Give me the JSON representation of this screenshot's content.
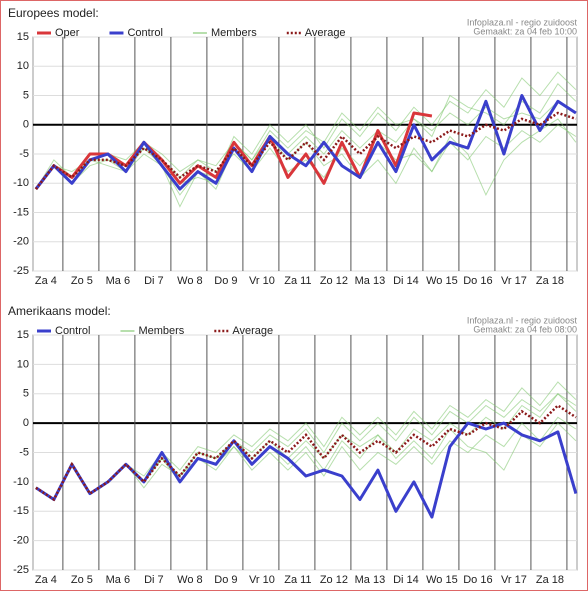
{
  "chart_data": [
    {
      "type": "line",
      "title": "Europees model:",
      "source": "Infoplaza.nl - regio zuidoost",
      "made": "Gemaakt: za 04 feb 10:00",
      "x": [
        -0.75,
        -0.25,
        0.25,
        0.75,
        1.25,
        1.75,
        2.25,
        2.75,
        3.25,
        3.75,
        4.25,
        4.75,
        5.25,
        5.75,
        6.25,
        6.75,
        7.25,
        7.75,
        8.25,
        8.75,
        9.25,
        9.75,
        10.25,
        10.75,
        11.25,
        11.75,
        12.25,
        12.75,
        13.25,
        13.75,
        14.25
      ],
      "xlim": [
        -0.83,
        14.28
      ],
      "xticks": [
        {
          "value": 0,
          "label": "Za 4"
        },
        {
          "value": 1,
          "label": "Zo 5"
        },
        {
          "value": 2,
          "label": "Ma 6"
        },
        {
          "value": 3,
          "label": "Di 7"
        },
        {
          "value": 4,
          "label": "Wo 8"
        },
        {
          "value": 5,
          "label": "Do 9"
        },
        {
          "value": 6,
          "label": "Vr 10"
        },
        {
          "value": 7,
          "label": "Za 11"
        },
        {
          "value": 8,
          "label": "Zo 12"
        },
        {
          "value": 9,
          "label": "Ma 13"
        },
        {
          "value": 10,
          "label": "Di 14"
        },
        {
          "value": 11,
          "label": "Wo 15"
        },
        {
          "value": 12,
          "label": "Do 16"
        },
        {
          "value": 13,
          "label": "Vr 17"
        },
        {
          "value": 14,
          "label": "Za 18"
        }
      ],
      "ylim": [
        -25,
        15
      ],
      "yticks": [
        15,
        10,
        5,
        0,
        -5,
        -10,
        -15,
        -20,
        -25
      ],
      "grid": true,
      "series": [
        {
          "name": "Oper",
          "color": "#d9363a",
          "style": "solid",
          "values": [
            -11,
            -7,
            -9,
            -5,
            -5,
            -7,
            -3,
            -6,
            -10,
            -7,
            -9,
            -3,
            -7,
            -2,
            -9,
            -5,
            -10,
            -3,
            -9,
            -1,
            -7,
            2,
            1.5,
            null,
            null,
            null,
            null,
            null,
            null,
            null,
            null
          ]
        },
        {
          "name": "Control",
          "color": "#3a3fcc",
          "style": "solid",
          "values": [
            -11,
            -7,
            -10,
            -6,
            -5,
            -8,
            -3,
            -7,
            -11,
            -8,
            -10,
            -4,
            -8,
            -2,
            -5,
            -7,
            -3,
            -7,
            -9,
            -3,
            -8,
            0,
            -6,
            -3,
            -4,
            4,
            -5,
            5,
            -1,
            4,
            2
          ]
        },
        {
          "name": "Members",
          "color": "#7cc46a",
          "style": "ensemble",
          "values": [
            [
              -11,
              -7,
              -9,
              -6,
              -6,
              -8,
              -4,
              -7,
              -12,
              -8,
              -9,
              -2,
              -5,
              0,
              -3,
              0,
              -4,
              1,
              -2,
              2,
              -1,
              3,
              0,
              4,
              2,
              6,
              3,
              8,
              5,
              9,
              6
            ],
            [
              -11,
              -7,
              -10,
              -7,
              -6,
              -7,
              -3,
              -6,
              -9,
              -6,
              -8,
              -5,
              -8,
              -4,
              -8,
              -6,
              -9,
              -4,
              -7,
              -3,
              -6,
              -5,
              -8,
              -3,
              -6,
              -2,
              -4,
              -1,
              -3,
              0,
              -2
            ],
            [
              -11,
              -6,
              -9,
              -5,
              -5,
              -7,
              -4,
              -6,
              -10,
              -9,
              -10,
              -3,
              -6,
              -1,
              -4,
              -1,
              -3,
              2,
              -1,
              3,
              0,
              1,
              -2,
              5,
              3,
              2,
              0,
              4,
              2,
              7,
              4
            ],
            [
              -11,
              -7,
              -8,
              -6,
              -7,
              -8,
              -5,
              -7,
              -14,
              -8,
              -11,
              -4,
              -7,
              -2,
              -6,
              -3,
              -7,
              -5,
              -9,
              -6,
              -10,
              -4,
              -8,
              -2,
              -5,
              -12,
              -6,
              -3,
              -1,
              1,
              -3
            ],
            [
              -11,
              -7,
              -9,
              -6,
              -5,
              -6,
              -3,
              -5,
              -8,
              -6,
              -7,
              -3,
              -6,
              -2,
              -5,
              -2,
              -5,
              -1,
              -4,
              -1,
              -3,
              1,
              -1,
              2,
              0,
              3,
              1,
              2,
              1,
              4,
              2
            ]
          ]
        },
        {
          "name": "Average",
          "color": "#8b1a1a",
          "style": "dotted",
          "values": [
            -11,
            -7,
            -9,
            -6,
            -6,
            -7,
            -4,
            -6,
            -9,
            -7,
            -8,
            -4,
            -7,
            -3,
            -6,
            -3,
            -6,
            -2,
            -5,
            -2,
            -4,
            -2,
            -3,
            -1,
            -2,
            0,
            -1,
            1,
            0,
            2,
            1
          ]
        }
      ]
    },
    {
      "type": "line",
      "title": "Amerikaans model:",
      "source": "Infoplaza.nl - regio zuidoost",
      "made": "Gemaakt: za 04 feb 08:00",
      "x": [
        -0.75,
        -0.25,
        0.25,
        0.75,
        1.25,
        1.75,
        2.25,
        2.75,
        3.25,
        3.75,
        4.25,
        4.75,
        5.25,
        5.75,
        6.25,
        6.75,
        7.25,
        7.75,
        8.25,
        8.75,
        9.25,
        9.75,
        10.25,
        10.75,
        11.25,
        11.75,
        12.25,
        12.75,
        13.25,
        13.75,
        14.25
      ],
      "xlim": [
        -0.83,
        14.28
      ],
      "xticks": [
        {
          "value": 0,
          "label": "Za 4"
        },
        {
          "value": 1,
          "label": "Zo 5"
        },
        {
          "value": 2,
          "label": "Ma 6"
        },
        {
          "value": 3,
          "label": "Di 7"
        },
        {
          "value": 4,
          "label": "Wo 8"
        },
        {
          "value": 5,
          "label": "Do 9"
        },
        {
          "value": 6,
          "label": "Vr 10"
        },
        {
          "value": 7,
          "label": "Za 11"
        },
        {
          "value": 8,
          "label": "Zo 12"
        },
        {
          "value": 9,
          "label": "Ma 13"
        },
        {
          "value": 10,
          "label": "Di 14"
        },
        {
          "value": 11,
          "label": "Wo 15"
        },
        {
          "value": 12,
          "label": "Do 16"
        },
        {
          "value": 13,
          "label": "Vr 17"
        },
        {
          "value": 14,
          "label": "Za 18"
        }
      ],
      "ylim": [
        -25,
        15
      ],
      "yticks": [
        15,
        10,
        5,
        0,
        -5,
        -10,
        -15,
        -20,
        -25
      ],
      "grid": true,
      "series": [
        {
          "name": "Control",
          "color": "#3a3fcc",
          "style": "solid",
          "values": [
            -11,
            -13,
            -7,
            -12,
            -10,
            -7,
            -10,
            -5,
            -10,
            -6,
            -7,
            -3,
            -7,
            -4,
            -6,
            -9,
            -8,
            -9,
            -13,
            -8,
            -15,
            -10,
            -16,
            -4,
            0,
            -1,
            0,
            -2,
            -3,
            -1.5,
            -12
          ]
        },
        {
          "name": "Members",
          "color": "#7cc46a",
          "style": "ensemble",
          "values": [
            [
              -11,
              -13,
              -7,
              -12,
              -10,
              -7,
              -9,
              -5,
              -8,
              -4,
              -5,
              -2,
              -4,
              -1,
              -3,
              0,
              -4,
              1,
              -2,
              1,
              -2,
              2,
              -1,
              3,
              1,
              4,
              2,
              6,
              3,
              7,
              4
            ],
            [
              -11,
              -13,
              -7,
              -12,
              -10,
              -7,
              -10,
              -6,
              -10,
              -6,
              -7,
              -4,
              -8,
              -5,
              -8,
              -5,
              -9,
              -4,
              -8,
              -5,
              -7,
              -4,
              -7,
              -3,
              -5,
              -2,
              -4,
              0,
              -3,
              1,
              -1
            ],
            [
              -11,
              -13,
              -7,
              -12,
              -10,
              -7,
              -11,
              -7,
              -9,
              -5,
              -6,
              -3,
              -6,
              -3,
              -6,
              -3,
              -6,
              -2,
              -4,
              -2,
              -5,
              -1,
              -3,
              0,
              -2,
              1,
              -1,
              3,
              1,
              5,
              2
            ],
            [
              -11,
              -13,
              -7,
              -12,
              -10,
              -7,
              -10,
              -6,
              -9,
              -6,
              -8,
              -4,
              -7,
              -4,
              -7,
              -4,
              -8,
              -3,
              -6,
              -2,
              -6,
              -3,
              -6,
              -1,
              -4,
              -5,
              -8,
              -2,
              -4,
              0,
              -3
            ],
            [
              -11,
              -13,
              -7,
              -12,
              -10,
              -7,
              -10,
              -6,
              -9,
              -5,
              -6,
              -3,
              -5,
              -2,
              -4,
              -1,
              -5,
              0,
              -3,
              0,
              -3,
              1,
              -2,
              2,
              0,
              3,
              1,
              4,
              2,
              5,
              3
            ]
          ]
        },
        {
          "name": "Average",
          "color": "#8b1a1a",
          "style": "dotted",
          "values": [
            -11,
            -13,
            -7,
            -12,
            -10,
            -7,
            -10,
            -6,
            -9,
            -5,
            -6,
            -3,
            -6,
            -3,
            -5,
            -2,
            -6,
            -2,
            -5,
            -3,
            -5,
            -2,
            -4,
            -1,
            -2,
            0,
            -1,
            2,
            0,
            3,
            1
          ]
        }
      ]
    }
  ]
}
